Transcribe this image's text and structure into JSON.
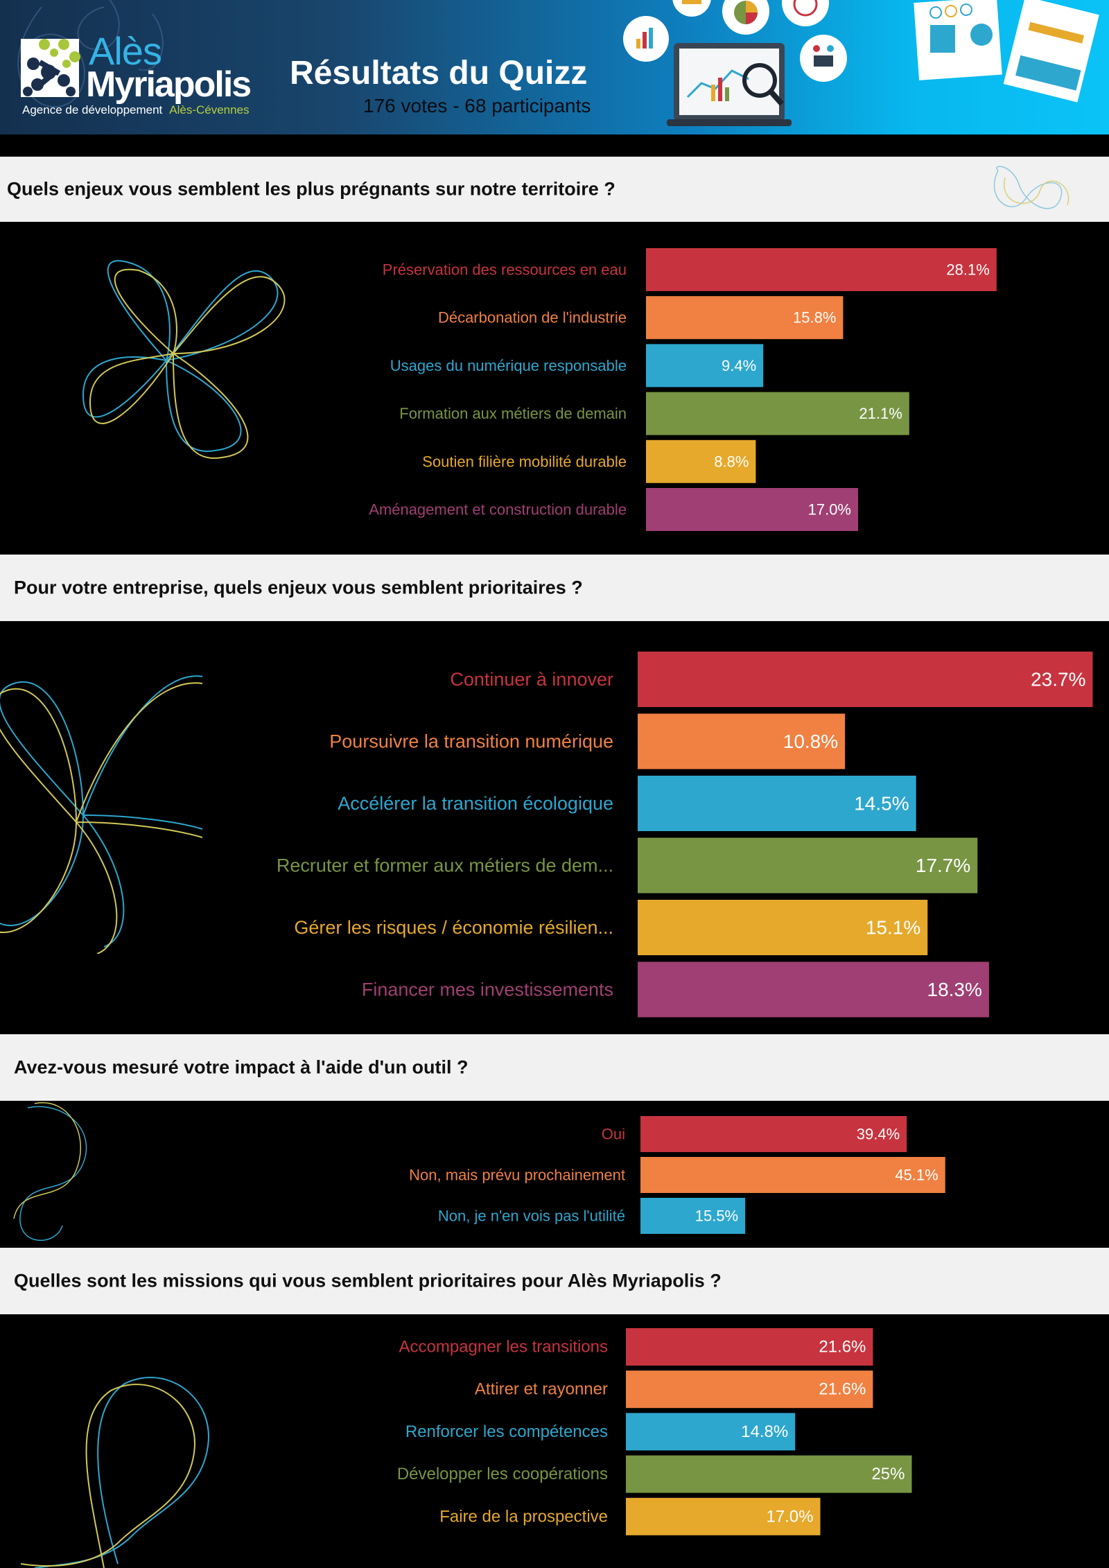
{
  "header": {
    "logo_top": "Alès",
    "logo_bottom": "Myriapolis",
    "tagline": "Agence de développement",
    "tagline_accent": "Alès-Cévennes",
    "title": "Résultats du Quizz",
    "subtitle": "176 votes - 68 participants"
  },
  "questions": [
    {
      "title": "Quels enjeux vous semblent les plus prégnants sur notre territoire ?"
    },
    {
      "title": "Pour votre entreprise, quels enjeux vous semblent prioritaires ?"
    },
    {
      "title": "Avez-vous mesuré votre impact à l'aide d'un outil ?"
    },
    {
      "title": "Quelles sont les missions qui vous semblent prioritaires pour Alès Myriapolis ?"
    }
  ],
  "colors": {
    "red": "#c7343f",
    "orange": "#f08142",
    "blue": "#2ea7cf",
    "green": "#789544",
    "yellow": "#e6a92c",
    "purple": "#a03f73"
  },
  "chart_data": [
    {
      "type": "bar",
      "orientation": "horizontal",
      "categories": [
        "Préservation des ressources en eau",
        "Décarbonation de l'industrie",
        "Usages du numérique responsable",
        "Formation aux métiers de demain",
        "Soutien filière mobilité durable",
        "Aménagement et construction durable"
      ],
      "values": [
        28.1,
        15.8,
        9.4,
        21.1,
        8.8,
        17.0
      ],
      "value_labels": [
        "28.1%",
        "15.8%",
        "9.4%",
        "21.1%",
        "8.8%",
        "17.0%"
      ],
      "colors": [
        "#c7343f",
        "#f08142",
        "#2ea7cf",
        "#789544",
        "#e6a92c",
        "#a03f73"
      ]
    },
    {
      "type": "bar",
      "orientation": "horizontal",
      "categories": [
        "Continuer à innover",
        "Poursuivre la transition numérique",
        "Accélérer la transition écologique",
        "Recruter et former aux métiers de dem...",
        "Gérer les risques / économie résilien...",
        "Financer mes investissements"
      ],
      "values": [
        23.7,
        10.8,
        14.5,
        17.7,
        15.1,
        18.3
      ],
      "value_labels": [
        "23.7%",
        "10.8%",
        "14.5%",
        "17.7%",
        "15.1%",
        "18.3%"
      ],
      "colors": [
        "#c7343f",
        "#f08142",
        "#2ea7cf",
        "#789544",
        "#e6a92c",
        "#a03f73"
      ]
    },
    {
      "type": "bar",
      "orientation": "horizontal",
      "categories": [
        "Oui",
        "Non, mais prévu prochainement",
        "Non, je n'en vois pas l'utilité"
      ],
      "values": [
        39.4,
        45.1,
        15.5
      ],
      "value_labels": [
        "39.4%",
        "45.1%",
        "15.5%"
      ],
      "colors": [
        "#c7343f",
        "#f08142",
        "#2ea7cf"
      ]
    },
    {
      "type": "bar",
      "orientation": "horizontal",
      "categories": [
        "Accompagner les transitions",
        "Attirer et rayonner",
        "Renforcer les compétences",
        "Développer les coopérations",
        "Faire de la prospective"
      ],
      "values": [
        21.6,
        21.6,
        14.8,
        25,
        17.0
      ],
      "value_labels": [
        "21.6%",
        "21.6%",
        "14.8%",
        "25%",
        "17.0%"
      ],
      "colors": [
        "#c7343f",
        "#f08142",
        "#2ea7cf",
        "#789544",
        "#e6a92c"
      ]
    }
  ]
}
